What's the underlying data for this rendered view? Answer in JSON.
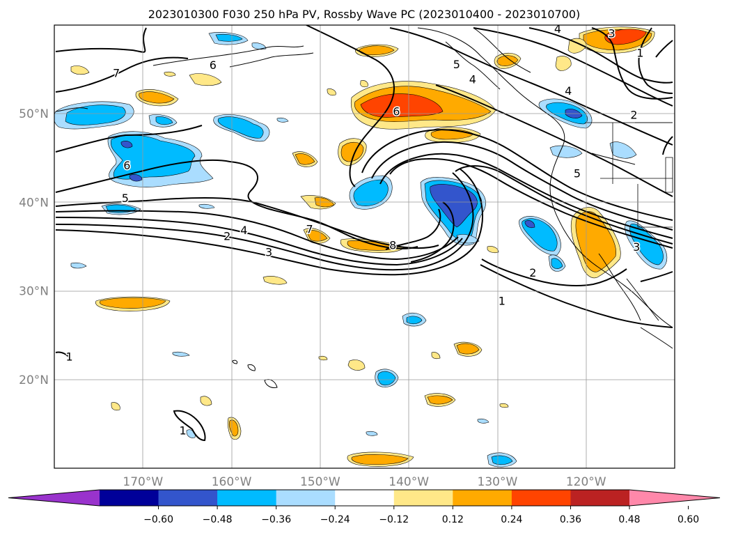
{
  "title": "2023010300 F030 250 hPa PV, Rossby Wave PC (2023010400 - 2023010700)",
  "map": {
    "lon_range": [
      -180,
      -110
    ],
    "lat_range": [
      10,
      60
    ],
    "lon_ticks": [
      {
        "value": -170,
        "label": "170°W"
      },
      {
        "value": -160,
        "label": "160°W"
      },
      {
        "value": -150,
        "label": "150°W"
      },
      {
        "value": -140,
        "label": "140°W"
      },
      {
        "value": -130,
        "label": "130°W"
      },
      {
        "value": -120,
        "label": "120°W"
      }
    ],
    "lat_ticks": [
      {
        "value": 20,
        "label": "20°N"
      },
      {
        "value": 30,
        "label": "30°N"
      },
      {
        "value": 40,
        "label": "40°N"
      },
      {
        "value": 50,
        "label": "50°N"
      }
    ],
    "contour_labels": [
      {
        "text": "6",
        "lon": -162.1,
        "lat": 55.5
      },
      {
        "text": "7",
        "lon": -173.0,
        "lat": 54.6
      },
      {
        "text": "6",
        "lon": -171.8,
        "lat": 44.2
      },
      {
        "text": "5",
        "lon": -172.0,
        "lat": 40.5
      },
      {
        "text": "2",
        "lon": -160.5,
        "lat": 36.2
      },
      {
        "text": "4",
        "lon": -158.6,
        "lat": 36.9
      },
      {
        "text": "3",
        "lon": -155.8,
        "lat": 34.4
      },
      {
        "text": "7",
        "lon": -151.2,
        "lat": 37.0
      },
      {
        "text": "8",
        "lon": -141.8,
        "lat": 35.2
      },
      {
        "text": "6",
        "lon": -141.4,
        "lat": 50.3
      },
      {
        "text": "5",
        "lon": -134.6,
        "lat": 55.6
      },
      {
        "text": "4",
        "lon": -132.8,
        "lat": 53.9
      },
      {
        "text": "4",
        "lon": -122.0,
        "lat": 52.6
      },
      {
        "text": "4",
        "lon": -123.2,
        "lat": 59.6
      },
      {
        "text": "3",
        "lon": -117.1,
        "lat": 59.1
      },
      {
        "text": "1",
        "lon": -113.9,
        "lat": 56.9
      },
      {
        "text": "2",
        "lon": -114.6,
        "lat": 49.9
      },
      {
        "text": "5",
        "lon": -121.0,
        "lat": 43.3
      },
      {
        "text": "3",
        "lon": -114.3,
        "lat": 35.0
      },
      {
        "text": "2",
        "lon": -126.0,
        "lat": 32.1
      },
      {
        "text": "1",
        "lon": -129.5,
        "lat": 28.9
      },
      {
        "text": "1",
        "lon": -178.3,
        "lat": 22.6
      },
      {
        "text": "1",
        "lon": -165.5,
        "lat": 14.3
      }
    ]
  },
  "colorbar": {
    "ticks": [
      "-0.60",
      "-0.48",
      "-0.36",
      "-0.24",
      "-0.12",
      "0.12",
      "0.24",
      "0.36",
      "0.48",
      "0.60"
    ],
    "colors": [
      "#9933cc",
      "#000099",
      "#3355cc",
      "#00bbff",
      "#aaddff",
      "#ffffff",
      "#ffe888",
      "#ffaa00",
      "#ff4400",
      "#bb2222",
      "#ff88aa"
    ]
  },
  "fill_colors": {
    "pos_weak": "#ffe888",
    "pos_mid": "#ffaa00",
    "pos_strong": "#ff4400",
    "neg_weak": "#aaddff",
    "neg_mid": "#00bbff",
    "neg_strong": "#3355cc"
  }
}
